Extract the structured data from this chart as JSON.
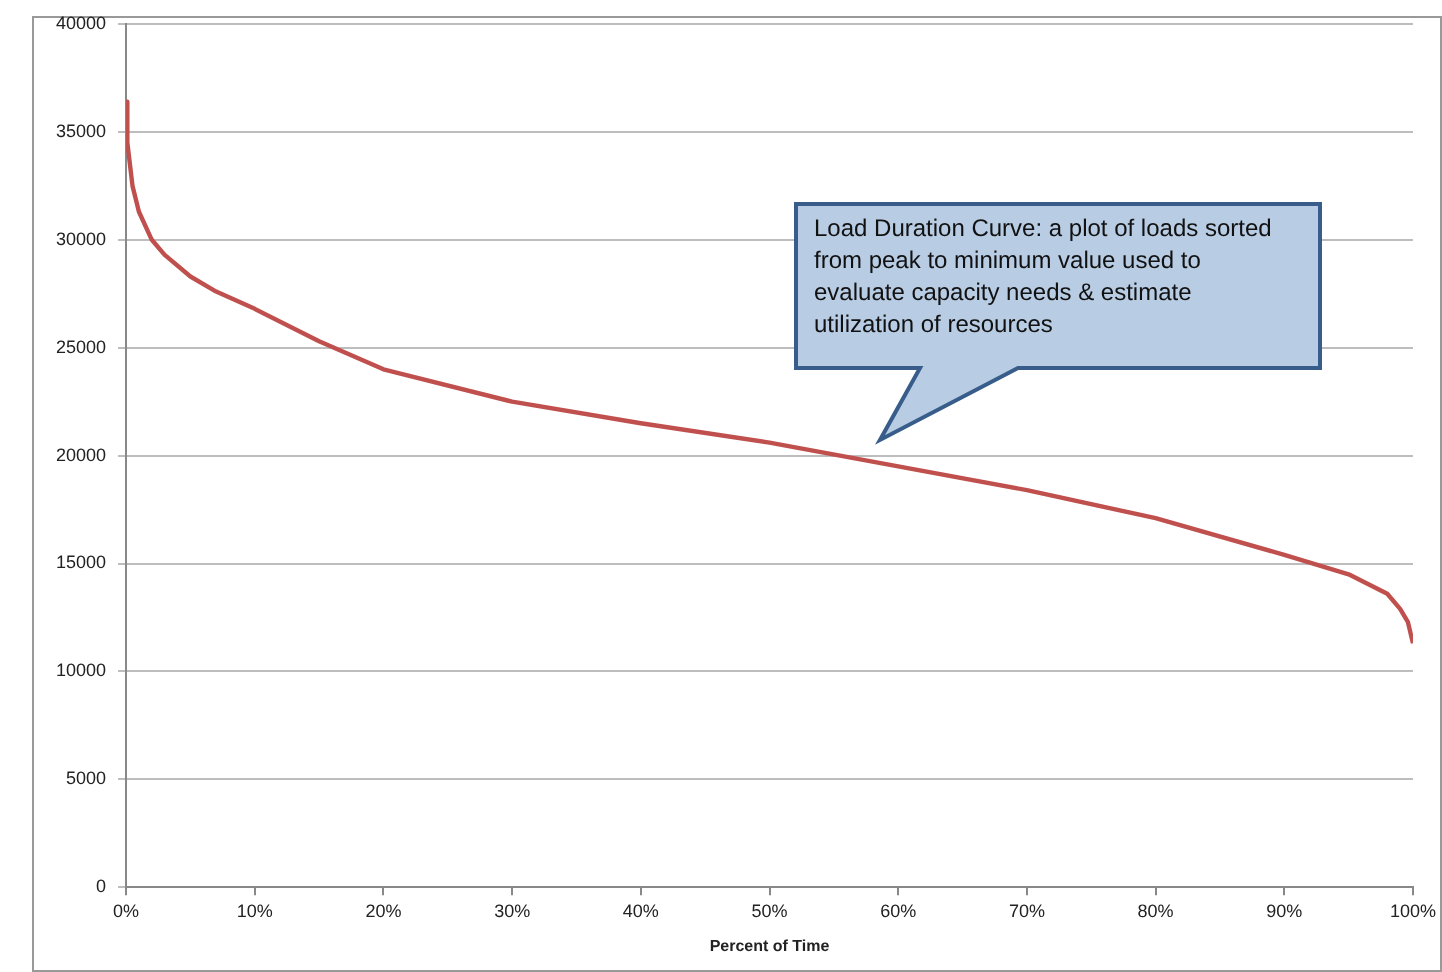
{
  "chart_data": {
    "type": "line",
    "xlabel": "Percent of Time",
    "annotations": [
      "Load Duration Curve: a plot of loads sorted from peak to minimum value used to evaluate capacity needs & estimate utilization of resources"
    ],
    "x": [
      0,
      0.1,
      0.5,
      1,
      2,
      3,
      5,
      7,
      10,
      15,
      20,
      30,
      40,
      50,
      60,
      70,
      80,
      90,
      95,
      98,
      99,
      99.6,
      100
    ],
    "series": [
      {
        "color": "#c0504d",
        "values": [
          36400,
          34500,
          32500,
          31300,
          30000,
          29300,
          28300,
          27600,
          26800,
          25300,
          24000,
          22500,
          21500,
          20600,
          19500,
          18400,
          17100,
          15400,
          14500,
          13600,
          12900,
          12300,
          11300
        ]
      }
    ],
    "xlim": [
      0,
      100
    ],
    "xticks": [
      {
        "value": 0,
        "label": "0%"
      },
      {
        "value": 10,
        "label": "10%"
      },
      {
        "value": 20,
        "label": "20%"
      },
      {
        "value": 30,
        "label": "30%"
      },
      {
        "value": 40,
        "label": "40%"
      },
      {
        "value": 50,
        "label": "50%"
      },
      {
        "value": 60,
        "label": "60%"
      },
      {
        "value": 70,
        "label": "70%"
      },
      {
        "value": 80,
        "label": "80%"
      },
      {
        "value": 90,
        "label": "90%"
      },
      {
        "value": 100,
        "label": "100%"
      }
    ],
    "ylim": [
      0,
      40000
    ],
    "yticks": [
      0,
      5000,
      10000,
      15000,
      20000,
      25000,
      30000,
      35000,
      40000
    ],
    "grid": "y",
    "legend": false,
    "marker": "none",
    "line_style": "solid"
  }
}
